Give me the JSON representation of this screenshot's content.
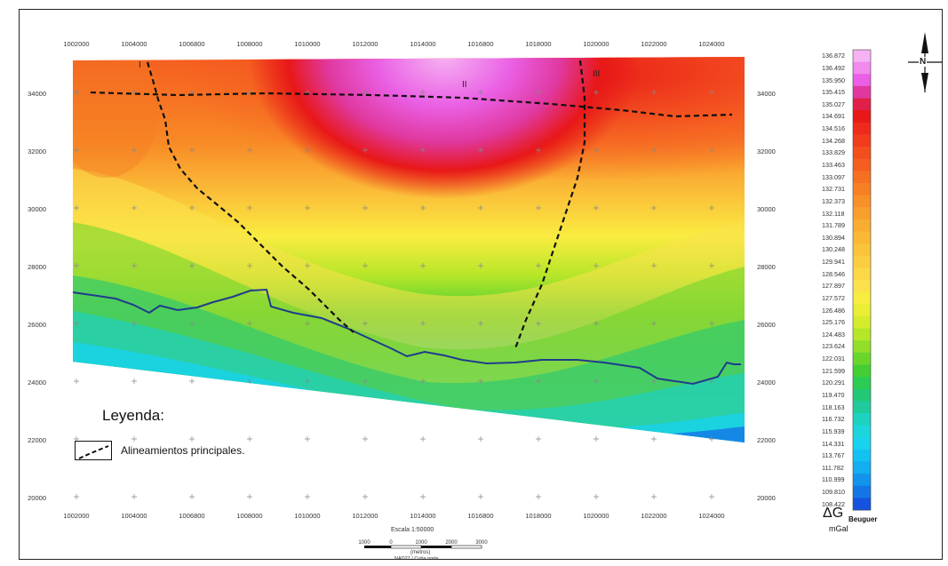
{
  "x_axis": {
    "top_ticks": [
      "1002000",
      "1004000",
      "1006800",
      "1008000",
      "1010000",
      "1012000",
      "1014000",
      "1016800",
      "1018000",
      "1020000",
      "1022000",
      "1024000"
    ],
    "bottom_ticks": [
      "1002000",
      "1004000",
      "1006800",
      "1008000",
      "1010000",
      "1012000",
      "1014000",
      "1016800",
      "1018000",
      "1020000",
      "1022000",
      "1024000"
    ]
  },
  "y_axis": {
    "ticks": [
      "34000",
      "32000",
      "30000",
      "28000",
      "26000",
      "24000",
      "22000",
      "20000"
    ]
  },
  "lineaments": {
    "labels": [
      "I",
      "II",
      "III"
    ]
  },
  "legend": {
    "title": "Leyenda:",
    "item_label": "Alineamientos principales."
  },
  "scale_bar": {
    "title": "Escala 1:50000",
    "tick_labels": [
      "1000",
      "0",
      "1000",
      "2000",
      "3000"
    ],
    "unit": "(metros)",
    "projection": "NAD27 / Cuba norte"
  },
  "colorbar": {
    "values": [
      "136.872",
      "136.492",
      "135.950",
      "135.415",
      "135.027",
      "134.691",
      "134.516",
      "134.268",
      "133.829",
      "133.463",
      "133.097",
      "132.731",
      "132.373",
      "132.118",
      "131.789",
      "130.894",
      "130.248",
      "129.941",
      "128.546",
      "127.897",
      "127.572",
      "126.486",
      "125.176",
      "124.483",
      "123.624",
      "122.031",
      "121.599",
      "120.291",
      "119.470",
      "118.163",
      "116.732",
      "115.939",
      "114.331",
      "113.767",
      "111.782",
      "110.999",
      "109.810",
      "108.422"
    ],
    "colors": [
      "#f6b2f3",
      "#f08aec",
      "#ea5fe4",
      "#e0389f",
      "#e02048",
      "#e81818",
      "#ef2a1c",
      "#f23c1e",
      "#f44d20",
      "#f55e20",
      "#f66f22",
      "#f78024",
      "#f89028",
      "#f99f2c",
      "#f9ac30",
      "#fab834",
      "#fbc33a",
      "#fbcd40",
      "#fcd846",
      "#fce14c",
      "#f9ec40",
      "#e9ee34",
      "#d4ec2c",
      "#b6e628",
      "#92de28",
      "#6ad62c",
      "#44ce34",
      "#2ccb52",
      "#22c876",
      "#1fcb9c",
      "#1ed2c0",
      "#1cd6dc",
      "#18d2ee",
      "#14c2f2",
      "#12aef0",
      "#1294ec",
      "#1476e6",
      "#1652e0"
    ],
    "symbol": "ΔG",
    "subscript": "Beuguer",
    "unit": "mGal"
  },
  "north_arrow": {
    "label": "N"
  }
}
